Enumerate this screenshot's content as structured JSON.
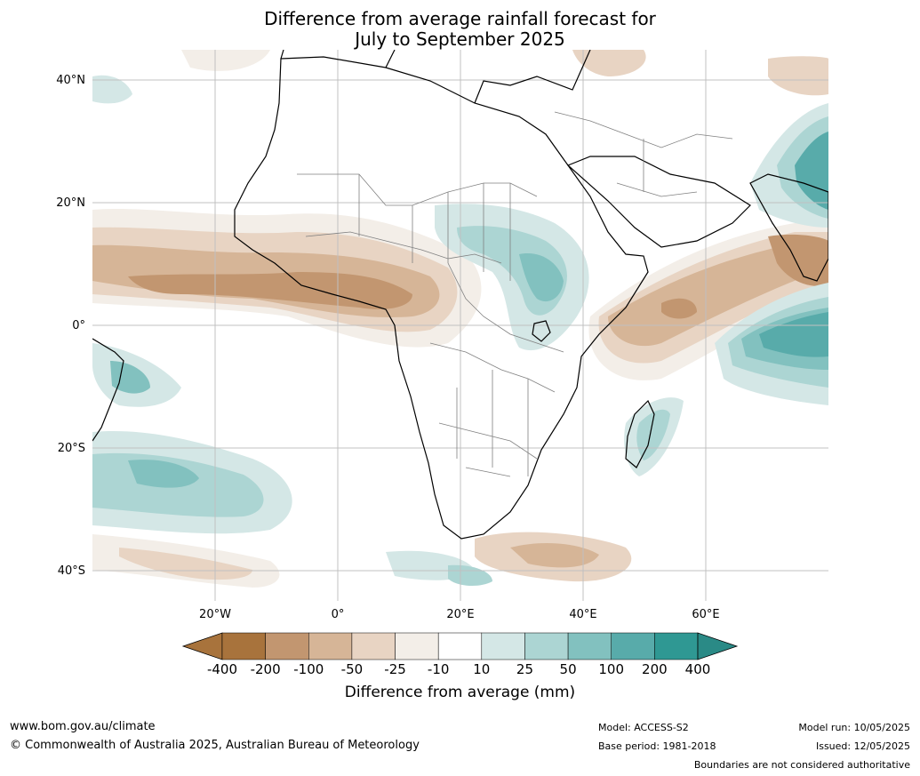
{
  "title_line1": "Difference from average rainfall forecast for",
  "title_line2": "July to September 2025",
  "map": {
    "lat_labels": [
      "40°N",
      "20°N",
      "0°",
      "20°S",
      "40°S"
    ],
    "lon_labels": [
      "20°W",
      "0°",
      "20°E",
      "40°E",
      "60°E"
    ],
    "extent": {
      "lon_min": -40,
      "lon_max": 80,
      "lat_min": -45,
      "lat_max": 45
    }
  },
  "colorbar": {
    "ticks": [
      "-400",
      "-200",
      "-100",
      "-50",
      "-25",
      "-10",
      "10",
      "25",
      "50",
      "100",
      "200",
      "400"
    ],
    "colors": [
      "#a8733c",
      "#a8733c",
      "#c29670",
      "#d6b597",
      "#e8d4c3",
      "#f3eee8",
      "#ffffff",
      "#d4e7e6",
      "#acd5d3",
      "#82c1bf",
      "#58abaa",
      "#2f9893",
      "#2a8a86"
    ],
    "title": "Difference from average (mm)"
  },
  "footer": {
    "url": "www.bom.gov.au/climate",
    "copyright": "© Commonwealth of Australia 2025, Australian Bureau of Meteorology",
    "model": "Model: ACCESS-S2",
    "base_period": "Base period: 1981-2018",
    "model_run": "Model run: 10/05/2025",
    "issued": "Issued: 12/05/2025",
    "disclaimer": "Boundaries are not considered authoritative"
  }
}
